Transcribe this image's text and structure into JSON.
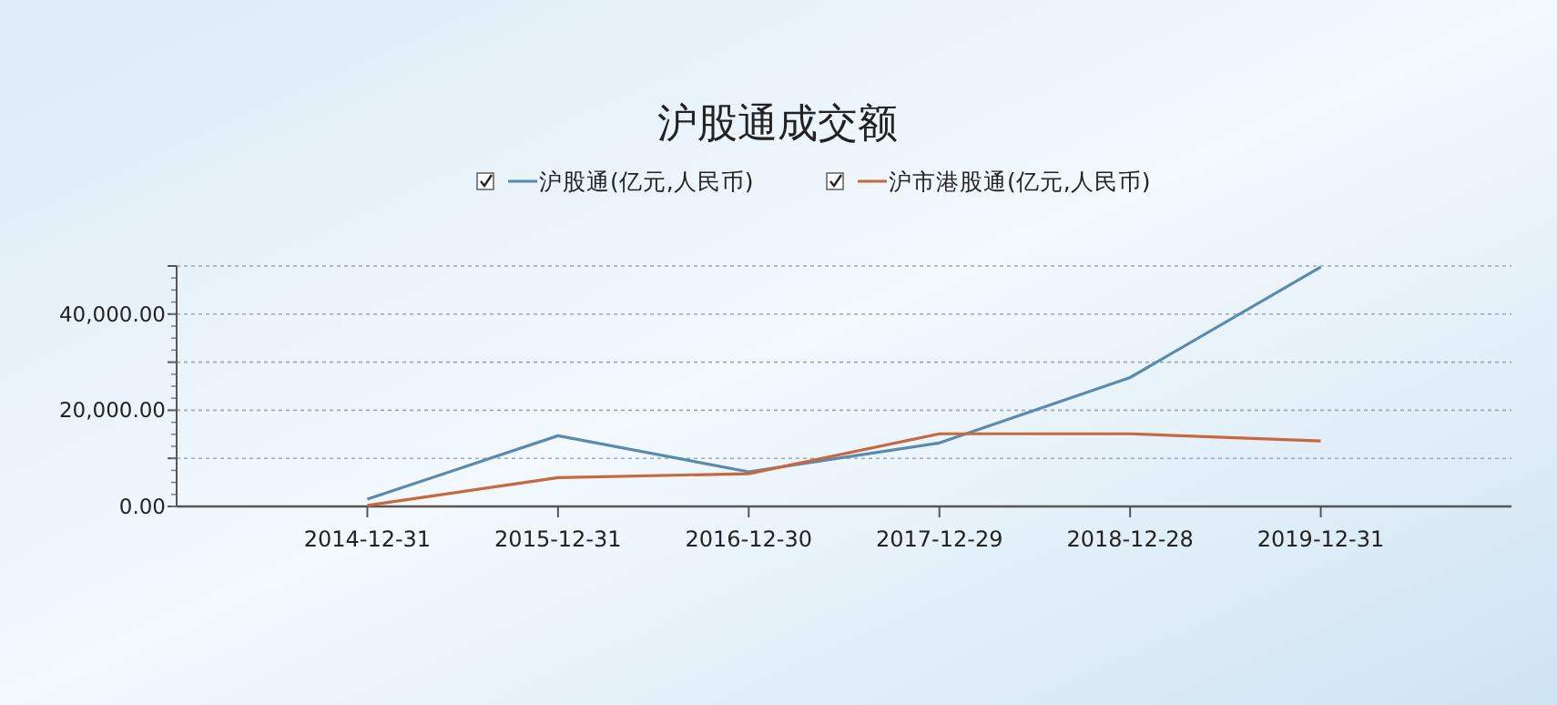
{
  "chart_data": {
    "type": "line",
    "title": "沪股通成交额",
    "categories": [
      "2014-12-31",
      "2015-12-31",
      "2016-12-30",
      "2017-12-29",
      "2018-12-28",
      "2019-12-31"
    ],
    "series": [
      {
        "name": "沪股通(亿元,人民币)",
        "color": "#5a8aae",
        "values": [
          1500,
          14700,
          7200,
          13200,
          26800,
          49800
        ]
      },
      {
        "name": "沪市港股通(亿元,人民币)",
        "color": "#c8683f",
        "values": [
          200,
          6000,
          6800,
          15100,
          15100,
          13600
        ]
      }
    ],
    "ylim": [
      0,
      50000
    ],
    "yticks": [
      {
        "value": 0,
        "label": "0.00"
      },
      {
        "value": 10000,
        "label": null
      },
      {
        "value": 20000,
        "label": "20,000.00"
      },
      {
        "value": 30000,
        "label": null
      },
      {
        "value": 40000,
        "label": "40,000.00"
      },
      {
        "value": 50000,
        "label": null
      }
    ],
    "grid": "y",
    "legend": "top",
    "marker": "none",
    "line_style": "solid"
  }
}
